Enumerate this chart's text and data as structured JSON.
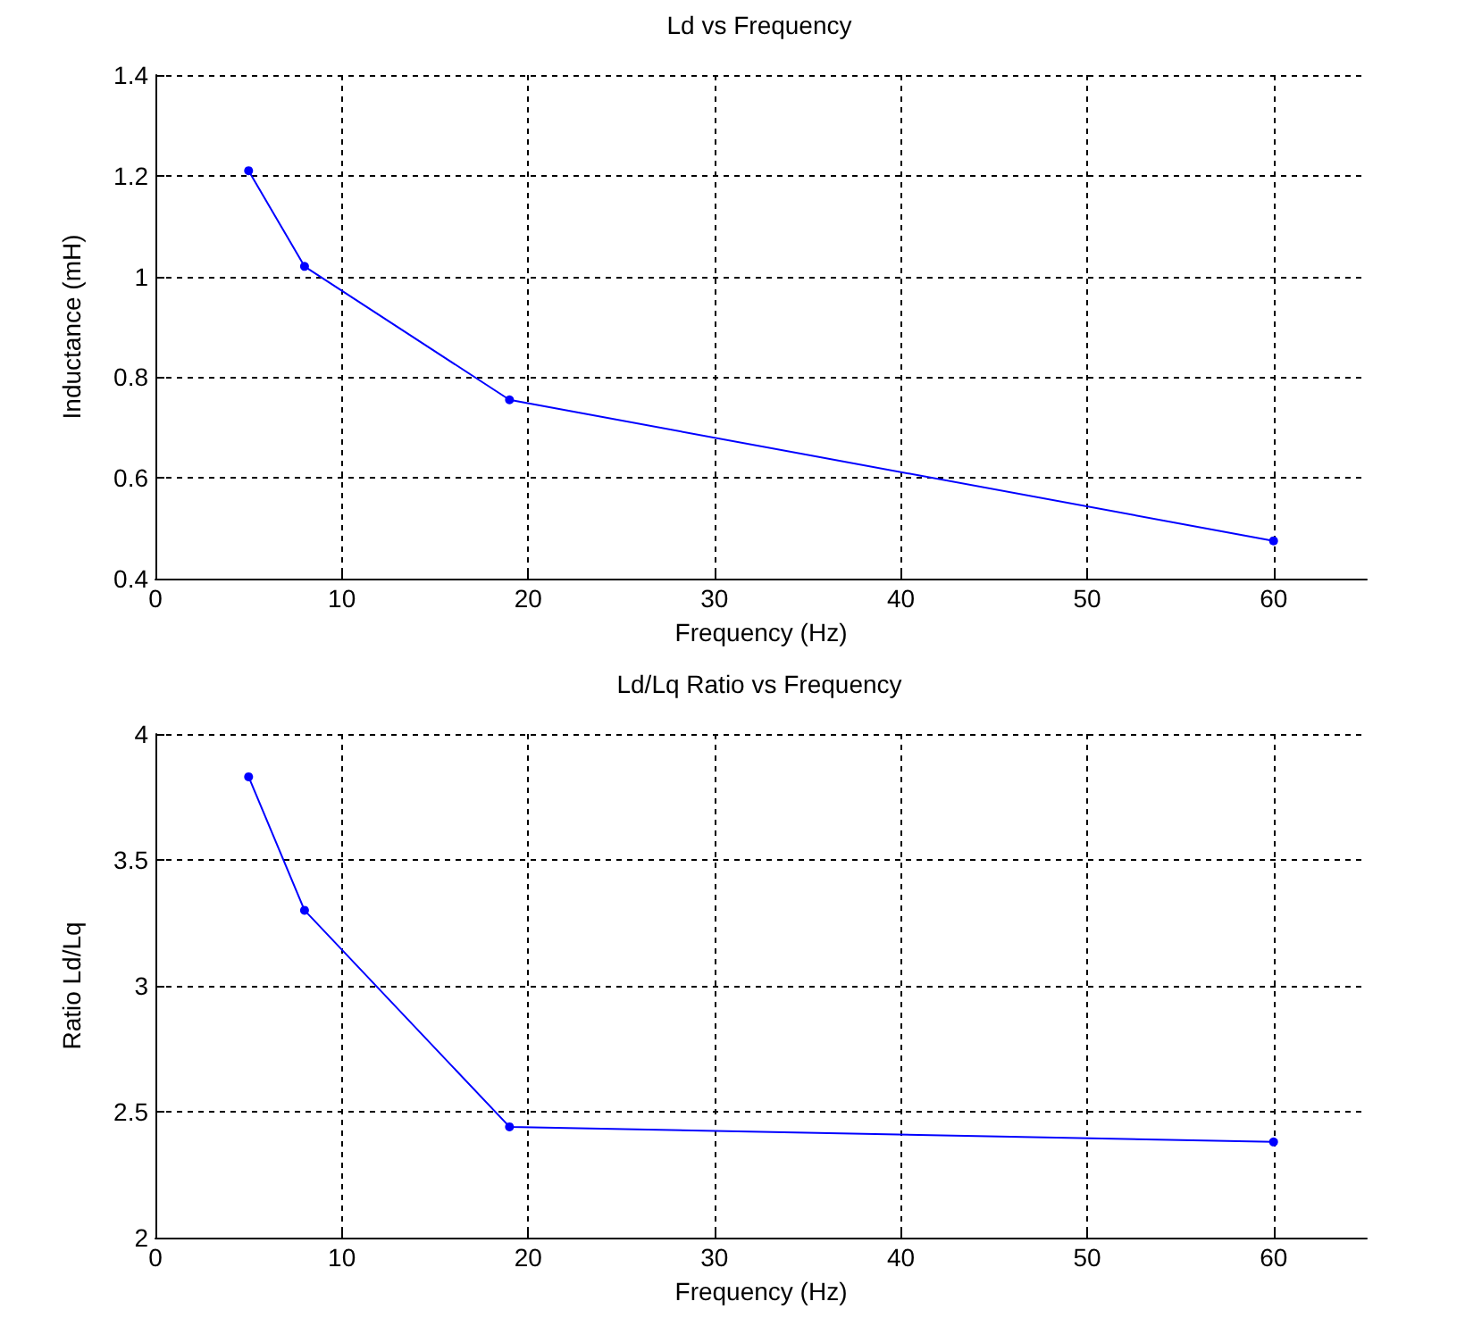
{
  "chart_data": [
    {
      "type": "line",
      "title": "Ld vs Frequency",
      "xlabel": "Frequency (Hz)",
      "ylabel": "Inductance (mH)",
      "x": [
        5,
        8,
        19,
        60
      ],
      "series": [
        {
          "color": "#0000ff",
          "values": [
            1.21,
            1.02,
            0.755,
            0.475
          ]
        }
      ],
      "xlim": [
        0,
        65
      ],
      "xticks": [
        0,
        10,
        20,
        30,
        40,
        50,
        60
      ],
      "ylim": [
        0.4,
        1.4
      ],
      "yticks": [
        0.4,
        0.6,
        0.8,
        1,
        1.2,
        1.4
      ],
      "grid": true,
      "marker": "circle",
      "line_style": "solid"
    },
    {
      "type": "line",
      "title": "Ld/Lq Ratio vs Frequency",
      "xlabel": "Frequency (Hz)",
      "ylabel": "Ratio Ld/Lq",
      "x": [
        5,
        8,
        19,
        60
      ],
      "series": [
        {
          "color": "#0000ff",
          "values": [
            3.83,
            3.3,
            2.44,
            2.38
          ]
        }
      ],
      "xlim": [
        0,
        65
      ],
      "xticks": [
        0,
        10,
        20,
        30,
        40,
        50,
        60
      ],
      "ylim": [
        2,
        4
      ],
      "yticks": [
        2,
        2.5,
        3,
        3.5,
        4
      ],
      "grid": true,
      "marker": "circle",
      "line_style": "solid"
    }
  ]
}
